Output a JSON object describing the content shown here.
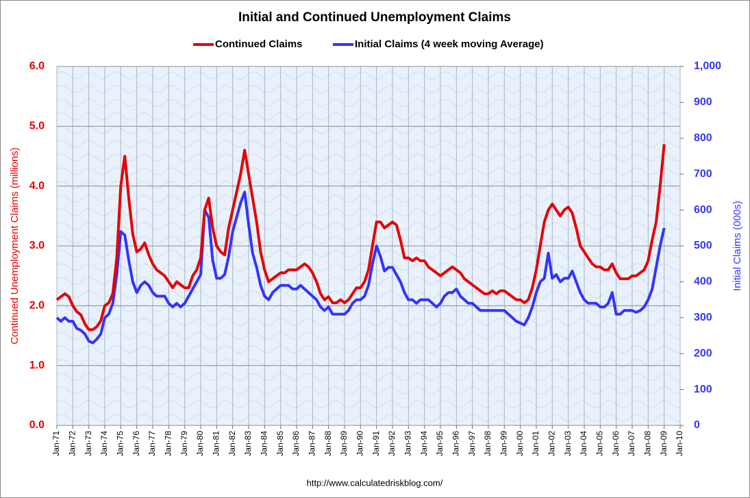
{
  "chart_data": {
    "type": "line",
    "title": "Initial and Continued Unemployment Claims",
    "ylabel": "Continued Unemployment Claims (millions)",
    "y2label": "Initial Claims (000s)",
    "source": "http://www.calculatedriskblog.com/",
    "legend": "top",
    "grid": true,
    "ylim": [
      0,
      6
    ],
    "yticks": [
      {
        "value": 0,
        "label": "0.0"
      },
      {
        "value": 1,
        "label": "1.0"
      },
      {
        "value": 2,
        "label": "2.0"
      },
      {
        "value": 3,
        "label": "3.0"
      },
      {
        "value": 4,
        "label": "4.0"
      },
      {
        "value": 5,
        "label": "5.0"
      },
      {
        "value": 6,
        "label": "6.0"
      }
    ],
    "y2lim": [
      0,
      1000
    ],
    "y2ticks": [
      0,
      100,
      200,
      300,
      400,
      500,
      600,
      700,
      800,
      900,
      {
        "value": 1000,
        "label": "1,000"
      }
    ],
    "xticks": [
      "Jan-71",
      "Jan-72",
      "Jan-73",
      "Jan-74",
      "Jan-75",
      "Jan-76",
      "Jan-77",
      "Jan-78",
      "Jan-79",
      "Jan-80",
      "Jan-81",
      "Jan-82",
      "Jan-83",
      "Jan-84",
      "Jan-85",
      "Jan-86",
      "Jan-87",
      "Jan-88",
      "Jan-89",
      "Jan-90",
      "Jan-91",
      "Jan-92",
      "Jan-93",
      "Jan-94",
      "Jan-95",
      "Jan-96",
      "Jan-97",
      "Jan-98",
      "Jan-99",
      "Jan-00",
      "Jan-01",
      "Jan-02",
      "Jan-03",
      "Jan-04",
      "Jan-05",
      "Jan-06",
      "Jan-07",
      "Jan-08",
      "Jan-09",
      "Jan-10"
    ],
    "x": [
      "Jan-71",
      "Apr-71",
      "Jul-71",
      "Oct-71",
      "Jan-72",
      "Apr-72",
      "Jul-72",
      "Oct-72",
      "Jan-73",
      "Apr-73",
      "Jul-73",
      "Oct-73",
      "Jan-74",
      "Apr-74",
      "Jul-74",
      "Oct-74",
      "Jan-75",
      "Apr-75",
      "Jul-75",
      "Oct-75",
      "Jan-76",
      "Apr-76",
      "Jul-76",
      "Oct-76",
      "Jan-77",
      "Apr-77",
      "Jul-77",
      "Oct-77",
      "Jan-78",
      "Apr-78",
      "Jul-78",
      "Oct-78",
      "Jan-79",
      "Apr-79",
      "Jul-79",
      "Oct-79",
      "Jan-80",
      "Apr-80",
      "Jul-80",
      "Oct-80",
      "Jan-81",
      "Apr-81",
      "Jul-81",
      "Oct-81",
      "Jan-82",
      "Apr-82",
      "Jul-82",
      "Oct-82",
      "Jan-83",
      "Apr-83",
      "Jul-83",
      "Oct-83",
      "Jan-84",
      "Apr-84",
      "Jul-84",
      "Oct-84",
      "Jan-85",
      "Apr-85",
      "Jul-85",
      "Oct-85",
      "Jan-86",
      "Apr-86",
      "Jul-86",
      "Oct-86",
      "Jan-87",
      "Apr-87",
      "Jul-87",
      "Oct-87",
      "Jan-88",
      "Apr-88",
      "Jul-88",
      "Oct-88",
      "Jan-89",
      "Apr-89",
      "Jul-89",
      "Oct-89",
      "Jan-90",
      "Apr-90",
      "Jul-90",
      "Oct-90",
      "Jan-91",
      "Apr-91",
      "Jul-91",
      "Oct-91",
      "Jan-92",
      "Apr-92",
      "Jul-92",
      "Oct-92",
      "Jan-93",
      "Apr-93",
      "Jul-93",
      "Oct-93",
      "Jan-94",
      "Apr-94",
      "Jul-94",
      "Oct-94",
      "Jan-95",
      "Apr-95",
      "Jul-95",
      "Oct-95",
      "Jan-96",
      "Apr-96",
      "Jul-96",
      "Oct-96",
      "Jan-97",
      "Apr-97",
      "Jul-97",
      "Oct-97",
      "Jan-98",
      "Apr-98",
      "Jul-98",
      "Oct-98",
      "Jan-99",
      "Apr-99",
      "Jul-99",
      "Oct-99",
      "Jan-00",
      "Apr-00",
      "Jul-00",
      "Oct-00",
      "Jan-01",
      "Apr-01",
      "Jul-01",
      "Oct-01",
      "Jan-02",
      "Apr-02",
      "Jul-02",
      "Oct-02",
      "Jan-03",
      "Apr-03",
      "Jul-03",
      "Oct-03",
      "Jan-04",
      "Apr-04",
      "Jul-04",
      "Oct-04",
      "Jan-05",
      "Apr-05",
      "Jul-05",
      "Oct-05",
      "Jan-06",
      "Apr-06",
      "Jul-06",
      "Oct-06",
      "Jan-07",
      "Apr-07",
      "Jul-07",
      "Oct-07",
      "Jan-08",
      "Apr-08",
      "Jul-08",
      "Oct-08",
      "Jan-09"
    ],
    "series": [
      {
        "name": "Continued Claims",
        "color": "#e60000",
        "axis": "y",
        "values": [
          2.1,
          2.15,
          2.2,
          2.15,
          2.0,
          1.9,
          1.85,
          1.7,
          1.6,
          1.6,
          1.65,
          1.75,
          2.0,
          2.05,
          2.2,
          2.8,
          4.0,
          4.5,
          3.8,
          3.2,
          2.9,
          2.95,
          3.05,
          2.85,
          2.7,
          2.6,
          2.55,
          2.5,
          2.4,
          2.3,
          2.4,
          2.35,
          2.3,
          2.3,
          2.5,
          2.6,
          2.8,
          3.6,
          3.8,
          3.3,
          3.0,
          2.9,
          2.85,
          3.3,
          3.6,
          3.9,
          4.2,
          4.6,
          4.2,
          3.8,
          3.4,
          2.9,
          2.6,
          2.4,
          2.45,
          2.5,
          2.55,
          2.55,
          2.6,
          2.6,
          2.6,
          2.65,
          2.7,
          2.65,
          2.55,
          2.4,
          2.2,
          2.1,
          2.15,
          2.05,
          2.05,
          2.1,
          2.05,
          2.1,
          2.2,
          2.3,
          2.3,
          2.4,
          2.6,
          3.0,
          3.4,
          3.4,
          3.3,
          3.35,
          3.4,
          3.35,
          3.1,
          2.8,
          2.8,
          2.75,
          2.8,
          2.75,
          2.75,
          2.65,
          2.6,
          2.55,
          2.5,
          2.55,
          2.6,
          2.65,
          2.6,
          2.55,
          2.45,
          2.4,
          2.35,
          2.3,
          2.25,
          2.2,
          2.2,
          2.25,
          2.2,
          2.25,
          2.25,
          2.2,
          2.15,
          2.1,
          2.1,
          2.05,
          2.1,
          2.3,
          2.6,
          3.0,
          3.4,
          3.6,
          3.7,
          3.6,
          3.5,
          3.6,
          3.65,
          3.55,
          3.3,
          3.0,
          2.9,
          2.8,
          2.7,
          2.65,
          2.65,
          2.6,
          2.6,
          2.7,
          2.55,
          2.45,
          2.45,
          2.45,
          2.5,
          2.5,
          2.55,
          2.6,
          2.75,
          3.1,
          3.4,
          4.0,
          4.7
        ]
      },
      {
        "name": "Initial Claims (4 week moving Average)",
        "color": "#3333ff",
        "axis": "y2",
        "values": [
          300,
          290,
          300,
          290,
          290,
          270,
          265,
          255,
          235,
          230,
          240,
          255,
          300,
          310,
          340,
          420,
          540,
          530,
          460,
          400,
          370,
          390,
          400,
          390,
          370,
          360,
          360,
          360,
          340,
          330,
          340,
          330,
          340,
          360,
          380,
          400,
          420,
          600,
          580,
          460,
          410,
          410,
          420,
          470,
          540,
          580,
          620,
          650,
          560,
          480,
          440,
          390,
          360,
          350,
          370,
          380,
          390,
          390,
          390,
          380,
          380,
          390,
          380,
          370,
          360,
          350,
          330,
          320,
          330,
          310,
          310,
          310,
          310,
          320,
          340,
          350,
          350,
          360,
          390,
          450,
          500,
          470,
          430,
          440,
          440,
          420,
          400,
          370,
          350,
          350,
          340,
          350,
          350,
          350,
          340,
          330,
          340,
          360,
          370,
          370,
          380,
          360,
          350,
          340,
          340,
          330,
          320,
          320,
          320,
          320,
          320,
          320,
          320,
          310,
          300,
          290,
          285,
          280,
          300,
          330,
          370,
          400,
          410,
          480,
          410,
          420,
          400,
          410,
          410,
          430,
          400,
          370,
          350,
          340,
          340,
          340,
          330,
          330,
          340,
          370,
          310,
          310,
          320,
          320,
          320,
          315,
          320,
          330,
          350,
          380,
          440,
          500,
          550
        ]
      }
    ]
  }
}
